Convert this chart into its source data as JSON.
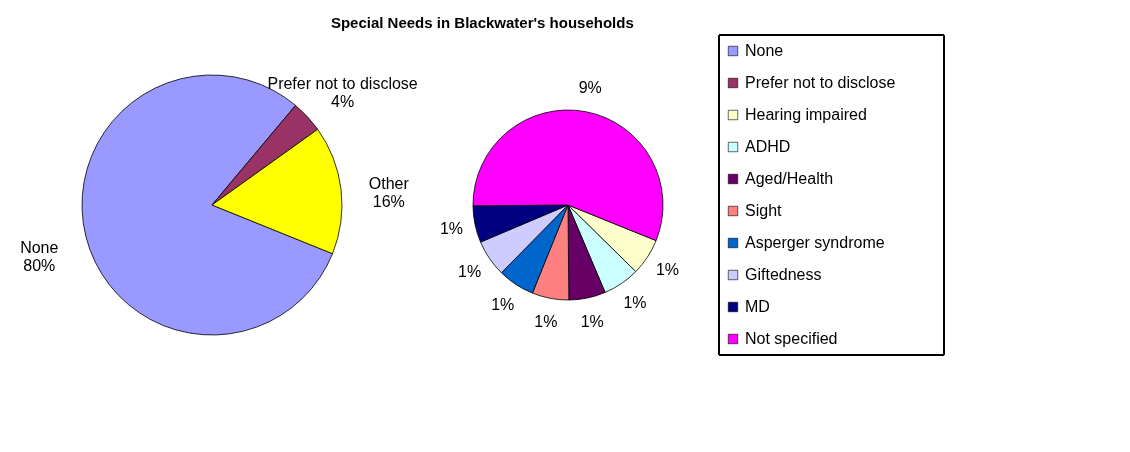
{
  "chart_data": [
    {
      "type": "pie",
      "title": "Special Needs in Blackwater's households",
      "categories": [
        "None",
        "Prefer not to disclose",
        "Other"
      ],
      "values": [
        80,
        4,
        16
      ],
      "colors": [
        "#9999ff",
        "#993366",
        "#ffff00"
      ],
      "value_labels": [
        "80%",
        "4%",
        "16%"
      ],
      "legend": "right"
    },
    {
      "type": "pie",
      "categories": [
        "Hearing impaired",
        "ADHD",
        "Aged/Health",
        "Sight",
        "Asperger syndrome",
        "Giftedness",
        "MD",
        "Not specified"
      ],
      "values": [
        1,
        1,
        1,
        1,
        1,
        1,
        1,
        9
      ],
      "colors": [
        "#ffffcc",
        "#ccffff",
        "#660066",
        "#ff8080",
        "#0066cc",
        "#ccccff",
        "#000080",
        "#ff00ff"
      ],
      "value_labels": [
        "1%",
        "1%",
        "1%",
        "1%",
        "1%",
        "1%",
        "1%",
        "9%"
      ],
      "legend": "right"
    }
  ]
}
